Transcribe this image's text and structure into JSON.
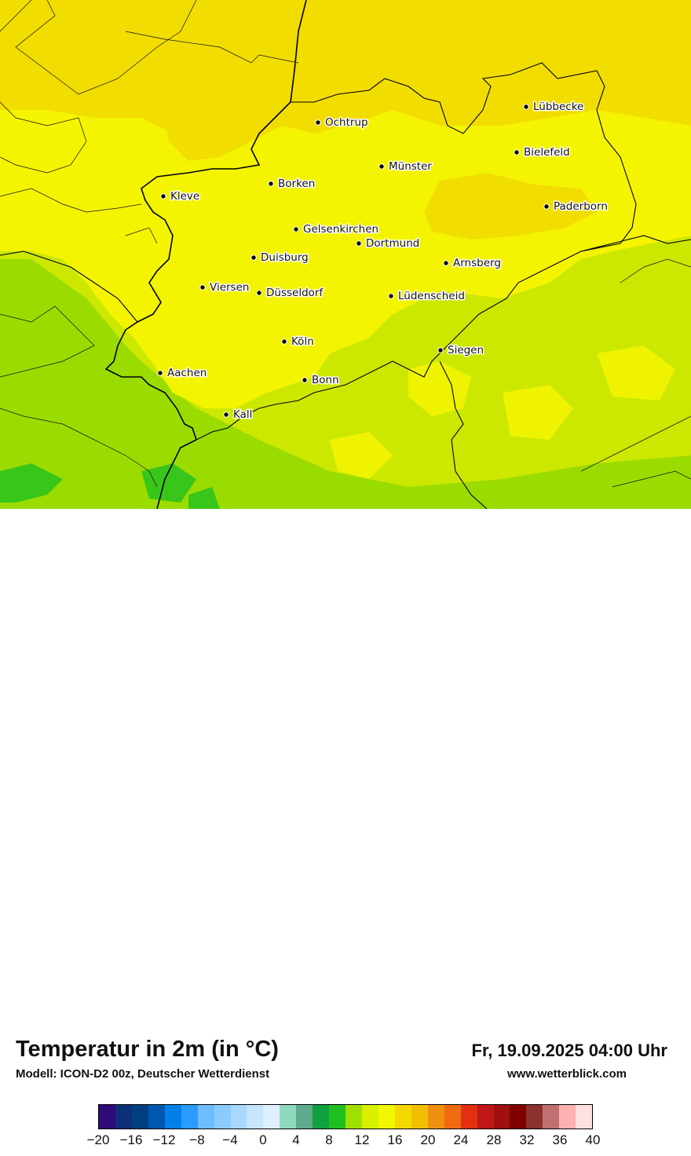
{
  "title": "Temperatur in 2m (in °C)",
  "subtitle": "Modell: ICON-D2 00z, Deutscher Wetterdienst",
  "datetime": "Fr, 19.09.2025 04:00 Uhr",
  "website": "www.wetterblick.com",
  "legend": {
    "unit": "°C",
    "tick_labels": [
      "−20",
      "−16",
      "−12",
      "−8",
      "−4",
      "0",
      "4",
      "8",
      "12",
      "16",
      "20",
      "24",
      "28",
      "32",
      "36",
      "40"
    ],
    "range": [
      -20,
      40
    ],
    "step": 2,
    "colors": [
      "#2e0a7a",
      "#0c2f78",
      "#004080",
      "#0057b0",
      "#0080e8",
      "#2a9cff",
      "#6cbcff",
      "#8ccbff",
      "#a8d8ff",
      "#c6e6ff",
      "#deefff",
      "#8fd9c0",
      "#5eab8c",
      "#11a040",
      "#20c020",
      "#a0e000",
      "#d6f000",
      "#f2f700",
      "#f4d800",
      "#f0c000",
      "#f09010",
      "#f06a10",
      "#e23010",
      "#c01818",
      "#a01010",
      "#800000",
      "#8c3030",
      "#c07070",
      "#ffb0b0",
      "#ffe0e0"
    ]
  },
  "map_colors": {
    "zone_14_16": "#e8f500",
    "zone_16_18": "#f4f400",
    "zone_18_20": "#f2dd00",
    "zone_12_14": "#cce800",
    "zone_10_12": "#9bdc00",
    "zone_8_10": "#20c020"
  },
  "cities": [
    {
      "name": "Lübbecke"
    },
    {
      "name": "Ochtrup"
    },
    {
      "name": "Bielefeld"
    },
    {
      "name": "Münster"
    },
    {
      "name": "Borken"
    },
    {
      "name": "Kleve"
    },
    {
      "name": "Paderborn"
    },
    {
      "name": "Gelsenkirchen"
    },
    {
      "name": "Dortmund"
    },
    {
      "name": "Duisburg"
    },
    {
      "name": "Arnsberg"
    },
    {
      "name": "Viersen"
    },
    {
      "name": "Düsseldorf"
    },
    {
      "name": "Lüdenscheid"
    },
    {
      "name": "Köln"
    },
    {
      "name": "Siegen"
    },
    {
      "name": "Aachen"
    },
    {
      "name": "Bonn"
    },
    {
      "name": "Kall"
    }
  ]
}
